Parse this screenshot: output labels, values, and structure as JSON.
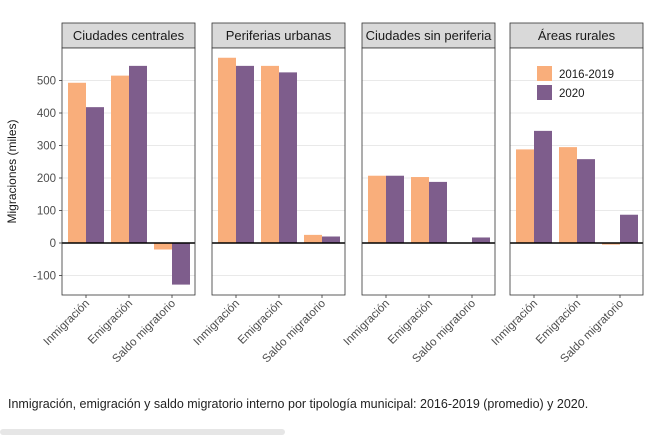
{
  "caption": "Inmigración, emigración y saldo migratorio interno por tipología municipal: 2016-2019 (promedio) y 2020.",
  "colors": {
    "s2016": "#f9ae7b",
    "s2020": "#7e5d8c",
    "strip": "#d9d9d9",
    "grid": "#e9e9e9",
    "zero": "#000000"
  },
  "chart_data": {
    "type": "bar",
    "ylabel": "Migraciones (miles)",
    "ylim": [
      -160,
      600
    ],
    "yticks": [
      -100,
      0,
      100,
      200,
      300,
      400,
      500
    ],
    "categories": [
      "Inmigración",
      "Emigración",
      "Saldo migratorio"
    ],
    "legend": {
      "position": "top-right",
      "panel": "Áreas rurales",
      "entries": [
        "2016-2019",
        "2020"
      ]
    },
    "panels": [
      {
        "title": "Ciudades centrales",
        "series": [
          {
            "name": "2016-2019",
            "values": [
              493,
              515,
              -20
            ]
          },
          {
            "name": "2020",
            "values": [
              418,
              545,
              -128
            ]
          }
        ]
      },
      {
        "title": "Periferias urbanas",
        "series": [
          {
            "name": "2016-2019",
            "values": [
              570,
              545,
              25
            ]
          },
          {
            "name": "2020",
            "values": [
              545,
              525,
              20
            ]
          }
        ]
      },
      {
        "title": "Ciudades sin periferia",
        "series": [
          {
            "name": "2016-2019",
            "values": [
              207,
              203,
              0
            ]
          },
          {
            "name": "2020",
            "values": [
              207,
              188,
              17
            ]
          }
        ]
      },
      {
        "title": "Áreas rurales",
        "series": [
          {
            "name": "2016-2019",
            "values": [
              288,
              295,
              -5
            ]
          },
          {
            "name": "2020",
            "values": [
              345,
              258,
              87
            ]
          }
        ]
      }
    ]
  }
}
